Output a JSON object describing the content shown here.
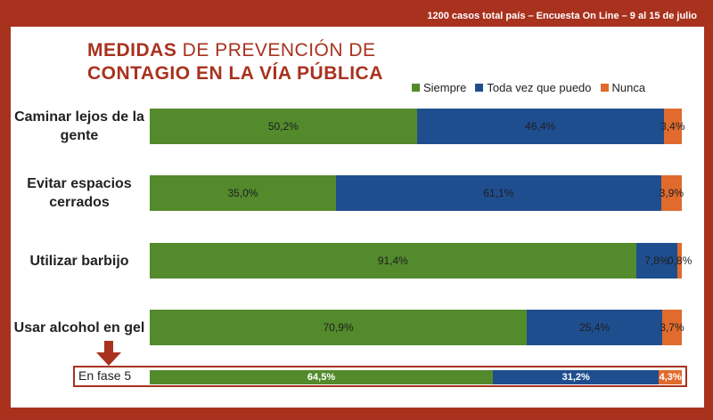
{
  "source_note": "1200 casos total país – Encuesta On Line – 9 al 15 de julio",
  "title": {
    "line1_bold": "MEDIDAS",
    "line1_rest": " DE PREVENCIÓN DE",
    "line2": "CONTAGIO EN LA VÍA PÚBLICA"
  },
  "colors": {
    "frame": "#a8321e",
    "siempre": "#538a2c",
    "toda_vez": "#1f4e8f",
    "nunca": "#e06b2d"
  },
  "chart_data": {
    "type": "bar",
    "orientation": "horizontal",
    "stacked": true,
    "percent": true,
    "title": "MEDIDAS DE PREVENCIÓN DE CONTAGIO EN LA VÍA PÚBLICA",
    "legend_position": "top-right",
    "categories": [
      "Caminar lejos de la gente",
      "Evitar espacios cerrados",
      "Utilizar barbijo",
      "Usar alcohol en gel"
    ],
    "series": [
      {
        "name": "Siempre",
        "values": [
          50.2,
          35.0,
          91.4,
          70.9
        ],
        "labels": [
          "50,2%",
          "35,0%",
          "91,4%",
          "70,9%"
        ]
      },
      {
        "name": "Toda vez que puedo",
        "values": [
          46.4,
          61.1,
          7.8,
          25.4
        ],
        "labels": [
          "46,4%",
          "61,1%",
          "7,8%",
          "25,4%"
        ]
      },
      {
        "name": "Nunca",
        "values": [
          3.4,
          3.9,
          0.8,
          3.7
        ],
        "labels": [
          "3,4%",
          "3,9%",
          "0,8%",
          "3,7%"
        ]
      }
    ],
    "comparison": {
      "label": "En fase 5",
      "values": [
        64.5,
        31.2,
        4.3
      ],
      "labels": [
        "64,5%",
        "31,2%",
        "4,3%"
      ]
    }
  },
  "category_lines": [
    [
      "Caminar lejos de la",
      "gente"
    ],
    [
      "Evitar espacios",
      "cerrados"
    ],
    [
      "Utilizar barbijo"
    ],
    [
      "Usar alcohol en gel"
    ]
  ]
}
